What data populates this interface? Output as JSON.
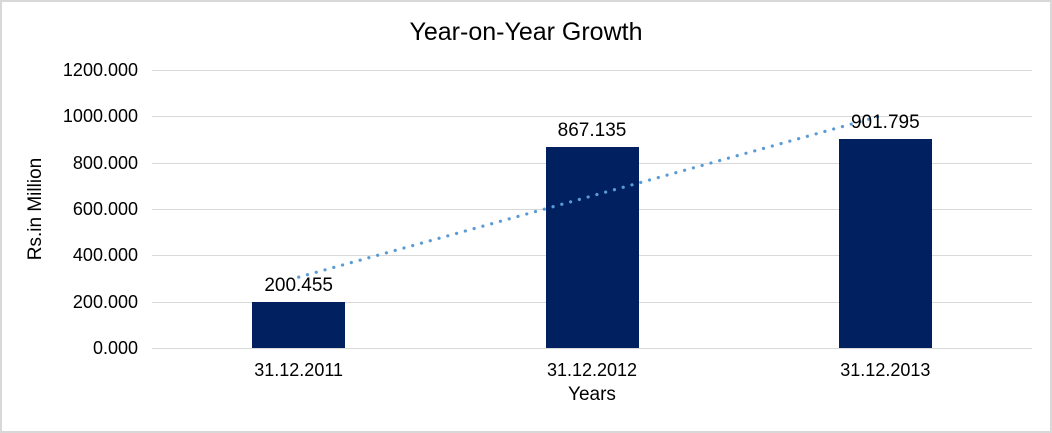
{
  "chart_data": {
    "type": "bar",
    "title": "Year-on-Year Growth",
    "xlabel": "Years",
    "ylabel": "Rs.in Million",
    "categories": [
      "31.12.2011",
      "31.12.2012",
      "31.12.2013"
    ],
    "values": [
      200.455,
      867.135,
      901.795
    ],
    "data_labels": [
      "200.455",
      "867.135",
      "901.795"
    ],
    "ylim": [
      0,
      1200
    ],
    "ytick_step": 200,
    "ytick_labels": [
      "0.000",
      "200.000",
      "400.000",
      "600.000",
      "800.000",
      "1000.000",
      "1200.000"
    ],
    "grid": true,
    "legend": false,
    "bar_color": "#002060",
    "gridline_color": "#d9d9d9",
    "text_color": "#000000",
    "trendline": {
      "type": "linear",
      "style": "dotted",
      "color": "#5b9bd5"
    }
  }
}
